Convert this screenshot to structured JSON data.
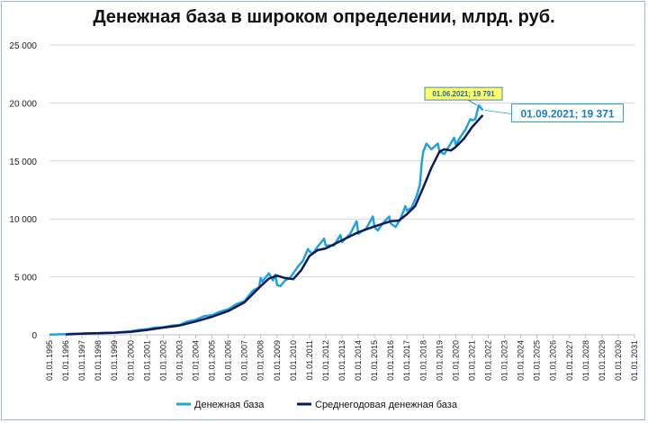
{
  "chart_data": {
    "type": "line",
    "title": "Денежная база в широком определении, млрд. руб.",
    "xlabel": "",
    "ylabel": "",
    "ylim": [
      0,
      25000
    ],
    "y_ticks": [
      "0",
      "5 000",
      "10 000",
      "15 000",
      "20 000",
      "25 000"
    ],
    "x_ticks": [
      "01.01.1995",
      "01.01.1996",
      "01.01.1997",
      "01.01.1998",
      "01.01.1999",
      "01.01.2000",
      "01.01.2001",
      "01.01.2002",
      "01.01.2003",
      "01.01.2004",
      "01.01.2005",
      "01.01.2006",
      "01.01.2007",
      "01.01.2008",
      "01.01.2009",
      "01.01.2010",
      "01.01.2011",
      "01.01.2012",
      "01.01.2013",
      "01.01.2014",
      "01.01.2015",
      "01.01.2016",
      "01.01.2017",
      "01.01.2018",
      "01.01.2019",
      "01.01.2020",
      "01.01.2021",
      "01.01.2022",
      "01.01.2023",
      "01.01.2024",
      "01.01.2025",
      "01.01.2026",
      "01.01.2027",
      "01.01.2028",
      "01.01.2029",
      "01.01.2030",
      "01.01.2031"
    ],
    "grid": "horizontal",
    "legend_position": "bottom",
    "series": [
      {
        "name": "Денежная база",
        "color": "#1fa3e0",
        "points": [
          [
            1995.0,
            20
          ],
          [
            1996.0,
            60
          ],
          [
            1996.5,
            90
          ],
          [
            1997.0,
            110
          ],
          [
            1997.5,
            140
          ],
          [
            1998.0,
            150
          ],
          [
            1998.5,
            170
          ],
          [
            1999.0,
            180
          ],
          [
            1999.5,
            240
          ],
          [
            2000.0,
            300
          ],
          [
            2000.5,
            430
          ],
          [
            2001.0,
            480
          ],
          [
            2001.5,
            620
          ],
          [
            2002.0,
            650
          ],
          [
            2002.5,
            790
          ],
          [
            2003.0,
            850
          ],
          [
            2003.5,
            1150
          ],
          [
            2004.0,
            1300
          ],
          [
            2004.5,
            1600
          ],
          [
            2005.0,
            1700
          ],
          [
            2005.5,
            2000
          ],
          [
            2006.0,
            2200
          ],
          [
            2006.5,
            2650
          ],
          [
            2007.0,
            2900
          ],
          [
            2007.5,
            3800
          ],
          [
            2007.9,
            4100
          ],
          [
            2008.0,
            4900
          ],
          [
            2008.1,
            4600
          ],
          [
            2008.5,
            5300
          ],
          [
            2008.75,
            4700
          ],
          [
            2008.9,
            5200
          ],
          [
            2009.0,
            4300
          ],
          [
            2009.2,
            4200
          ],
          [
            2009.5,
            4700
          ],
          [
            2009.8,
            4900
          ],
          [
            2010.0,
            5300
          ],
          [
            2010.3,
            5900
          ],
          [
            2010.6,
            6400
          ],
          [
            2010.9,
            7400
          ],
          [
            2011.0,
            7200
          ],
          [
            2011.2,
            7000
          ],
          [
            2011.5,
            7600
          ],
          [
            2011.9,
            8300
          ],
          [
            2012.0,
            7700
          ],
          [
            2012.5,
            7700
          ],
          [
            2012.9,
            8600
          ],
          [
            2013.0,
            8000
          ],
          [
            2013.5,
            8700
          ],
          [
            2013.9,
            9800
          ],
          [
            2014.0,
            8700
          ],
          [
            2014.5,
            9200
          ],
          [
            2014.9,
            10200
          ],
          [
            2015.0,
            9300
          ],
          [
            2015.2,
            9000
          ],
          [
            2015.5,
            9600
          ],
          [
            2015.9,
            10200
          ],
          [
            2016.0,
            9600
          ],
          [
            2016.3,
            9300
          ],
          [
            2016.6,
            10000
          ],
          [
            2016.9,
            11100
          ],
          [
            2017.0,
            10700
          ],
          [
            2017.3,
            11000
          ],
          [
            2017.6,
            12000
          ],
          [
            2017.8,
            13000
          ],
          [
            2017.9,
            14800
          ],
          [
            2018.0,
            15800
          ],
          [
            2018.2,
            16500
          ],
          [
            2018.5,
            16000
          ],
          [
            2018.9,
            16500
          ],
          [
            2019.0,
            15800
          ],
          [
            2019.3,
            15600
          ],
          [
            2019.6,
            16300
          ],
          [
            2019.9,
            17000
          ],
          [
            2020.0,
            16400
          ],
          [
            2020.3,
            17100
          ],
          [
            2020.6,
            17700
          ],
          [
            2020.9,
            18600
          ],
          [
            2021.0,
            18500
          ],
          [
            2021.2,
            18600
          ],
          [
            2021.42,
            19791
          ],
          [
            2021.67,
            19371
          ]
        ]
      },
      {
        "name": "Среднегодовая денежная база",
        "color": "#0d1a57",
        "points": [
          [
            1996.0,
            30
          ],
          [
            1997.0,
            90
          ],
          [
            1998.0,
            130
          ],
          [
            1999.0,
            170
          ],
          [
            2000.0,
            250
          ],
          [
            2001.0,
            420
          ],
          [
            2002.0,
            620
          ],
          [
            2003.0,
            800
          ],
          [
            2004.0,
            1150
          ],
          [
            2005.0,
            1550
          ],
          [
            2006.0,
            2050
          ],
          [
            2007.0,
            2800
          ],
          [
            2008.0,
            4200
          ],
          [
            2008.5,
            4850
          ],
          [
            2009.0,
            5100
          ],
          [
            2009.5,
            4900
          ],
          [
            2010.0,
            4800
          ],
          [
            2010.5,
            5600
          ],
          [
            2011.0,
            6800
          ],
          [
            2011.5,
            7300
          ],
          [
            2012.0,
            7450
          ],
          [
            2013.0,
            8150
          ],
          [
            2014.0,
            8850
          ],
          [
            2015.0,
            9350
          ],
          [
            2016.0,
            9800
          ],
          [
            2016.5,
            9850
          ],
          [
            2017.0,
            10400
          ],
          [
            2017.5,
            11100
          ],
          [
            2018.0,
            12700
          ],
          [
            2018.5,
            14400
          ],
          [
            2019.0,
            15800
          ],
          [
            2019.3,
            16000
          ],
          [
            2019.7,
            15900
          ],
          [
            2020.0,
            16200
          ],
          [
            2020.5,
            16900
          ],
          [
            2021.0,
            17900
          ],
          [
            2021.67,
            18950
          ]
        ]
      }
    ],
    "annotations": [
      {
        "text": "01.06.2021;  19 791",
        "x": 2021.42,
        "y": 19791,
        "style": "small",
        "background": "#ffff66"
      },
      {
        "text": "01.09.2021;  19 371",
        "x": 2021.67,
        "y": 19371,
        "style": "big",
        "background": "#ffffff"
      }
    ]
  }
}
